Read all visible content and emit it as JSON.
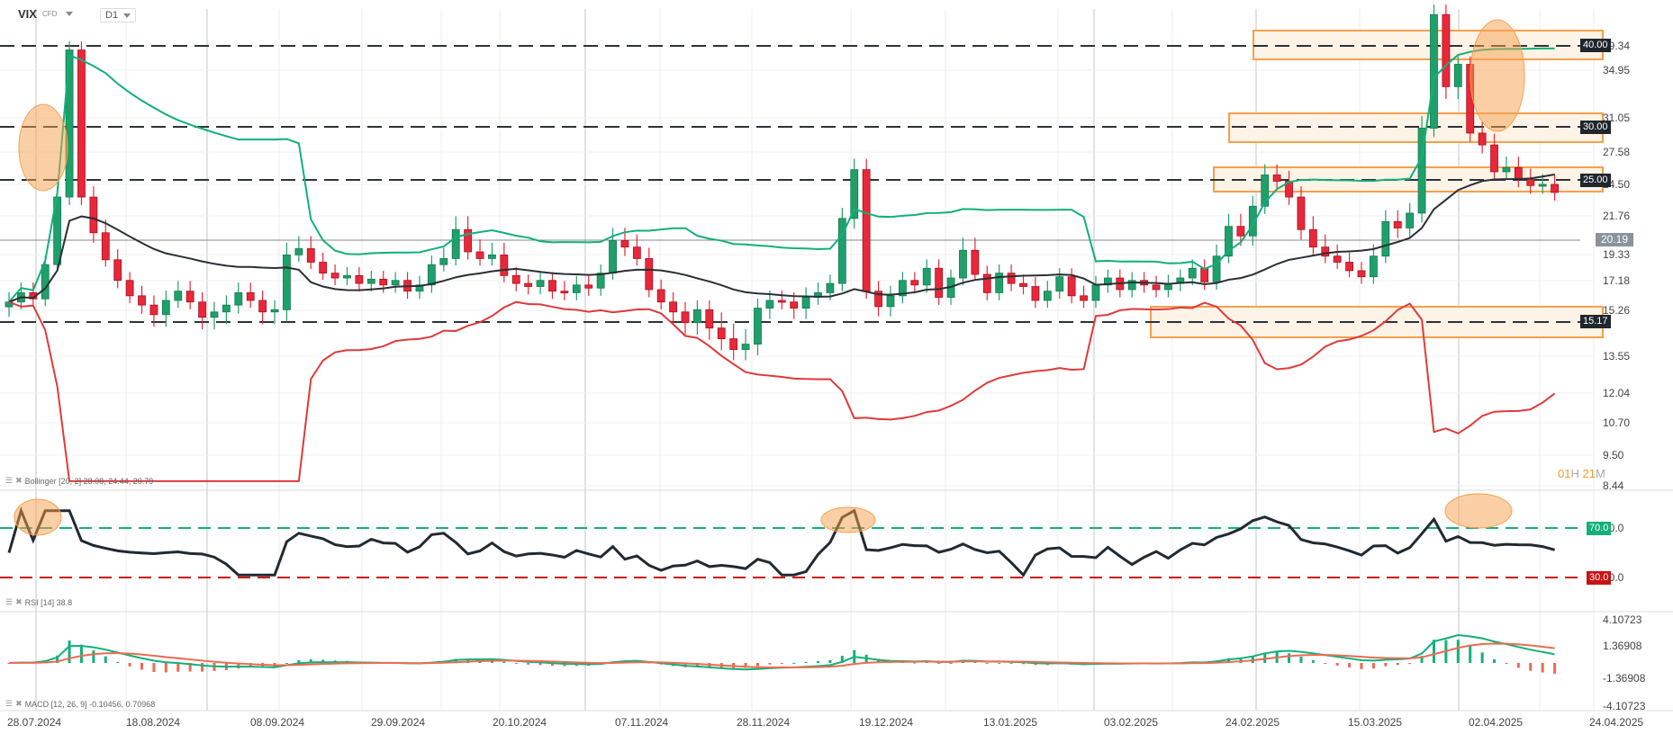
{
  "header": {
    "symbol": "VIX",
    "symbol_type": "CFD",
    "timeframe": "D1"
  },
  "price_axis": {
    "ticks": [
      "39.34",
      "34.95",
      "31.05",
      "27.58",
      "24.50",
      "21.76",
      "19.33",
      "17.18",
      "15.26",
      "13.55",
      "12.04",
      "10.70",
      "9.50",
      "8.44"
    ],
    "current_price": "20.19"
  },
  "levels": [
    {
      "value": "40.00"
    },
    {
      "value": "30.00"
    },
    {
      "value": "25.00"
    },
    {
      "value": "15.17"
    }
  ],
  "timer": {
    "hours": "01",
    "h": "H",
    "minutes": "21",
    "m": "M"
  },
  "indicators": {
    "bollinger": {
      "label": "Bollinger [20, 2] 28.08, 24.44, 20.79"
    },
    "rsi": {
      "label": "RSI [14] 38.8",
      "upper": "70.0",
      "lower": "30.0",
      "ticks": [
        "70.0",
        "30.0"
      ]
    },
    "macd": {
      "label": "MACD [12, 26, 9] -0.10456, 0.70968",
      "ticks": [
        "4.10723",
        "1.36908",
        "-1.36908",
        "-4.10723"
      ]
    }
  },
  "date_axis": [
    "28.07.2024",
    "18.08.2024",
    "08.09.2024",
    "29.09.2024",
    "20.10.2024",
    "07.11.2024",
    "28.11.2024",
    "19.12.2024",
    "13.01.2025",
    "03.02.2025",
    "24.02.2025",
    "15.03.2025",
    "02.04.2025",
    "24.04.2025"
  ],
  "colors": {
    "up": "#1fa06b",
    "down": "#e8283a",
    "upper_band": "#12b07a",
    "lower_band": "#e03a3a",
    "mid_band": "#2a2f35",
    "highlight": "#f6a04d",
    "rsi_70": "#12b07a",
    "rsi_30": "#cc1111",
    "macd_line": "#12b07a",
    "signal_line": "#ea6c52"
  },
  "chart_data": {
    "type": "candlestick",
    "title": "VIX CFD D1",
    "xlabel": "",
    "ylabel": "",
    "ylim": [
      8.44,
      42.5
    ],
    "x_ticks": [
      "28.07.2024",
      "18.08.2024",
      "08.09.2024",
      "29.09.2024",
      "20.10.2024",
      "07.11.2024",
      "28.11.2024",
      "19.12.2024",
      "13.01.2025",
      "03.02.2025",
      "24.02.2025",
      "15.03.2025",
      "02.04.2025",
      "24.04.2025"
    ],
    "close_series": [
      15.8,
      16.4,
      16.0,
      18.5,
      23.4,
      38.6,
      23.4,
      20.7,
      18.9,
      17.2,
      16.2,
      15.6,
      15.1,
      15.9,
      16.5,
      15.8,
      15.0,
      15.2,
      15.6,
      16.4,
      15.9,
      15.2,
      15.3,
      19.3,
      19.7,
      18.7,
      17.8,
      17.4,
      17.6,
      17.0,
      17.3,
      16.9,
      17.2,
      16.5,
      16.9,
      18.5,
      19.0,
      20.9,
      19.5,
      19.0,
      19.3,
      17.6,
      17.0,
      16.8,
      17.2,
      16.5,
      16.4,
      16.9,
      16.7,
      17.8,
      20.2,
      19.8,
      19.0,
      16.6,
      15.8,
      15.2,
      14.8,
      15.3,
      14.6,
      14.2,
      13.8,
      14.0,
      15.4,
      15.9,
      15.8,
      15.4,
      16.1,
      16.4,
      17.0,
      21.6,
      25.9,
      16.5,
      15.5,
      16.2,
      17.2,
      16.9,
      18.2,
      16.1,
      17.4,
      19.6,
      17.7,
      16.4,
      17.8,
      17.0,
      16.8,
      15.9,
      16.5,
      17.5,
      16.2,
      15.9,
      16.9,
      17.4,
      16.6,
      17.2,
      16.9,
      16.6,
      17.0,
      17.4,
      18.2,
      17.1,
      19.2,
      21.1,
      20.5,
      22.6,
      25.4,
      24.8,
      23.4,
      20.9,
      19.8,
      19.2,
      18.7,
      18.0,
      17.5,
      19.2,
      21.4,
      21.0,
      22.0,
      30.0,
      45.3,
      33.6,
      36.0,
      29.5,
      28.3,
      25.7,
      26.1,
      25.0,
      24.4,
      24.5,
      23.8
    ],
    "bollinger": {
      "period": 20,
      "stddev": 2,
      "upper": 28.08,
      "middle": 24.44,
      "lower": 20.79
    },
    "rsi": {
      "period": 14,
      "value": 38.8,
      "levels": [
        70,
        30
      ],
      "ylim": [
        20,
        80
      ]
    },
    "macd": {
      "params": [
        12,
        26,
        9
      ],
      "macd": -0.10456,
      "signal": 0.70968,
      "ylim": [
        -4.10723,
        4.10723
      ]
    },
    "horizontal_levels": [
      40.0,
      30.0,
      25.0,
      15.17
    ],
    "last_price": 20.19
  }
}
